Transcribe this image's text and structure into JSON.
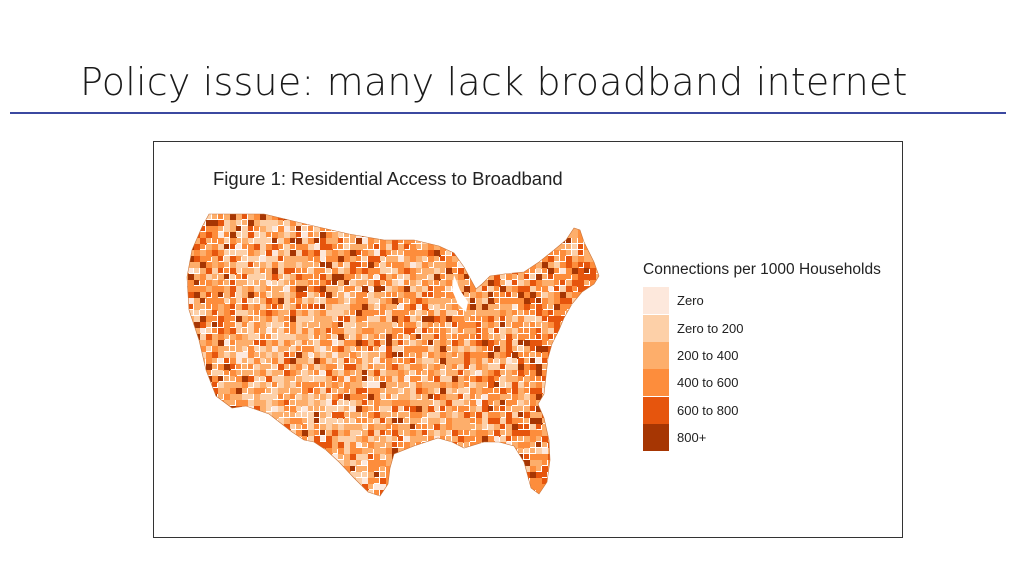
{
  "slide": {
    "title": "Policy issue: many lack broadband internet",
    "rule_color": "#3b48a0"
  },
  "figure": {
    "title": "Figure 1: Residential Access to Broadband",
    "map_subject": "contiguous United States by county",
    "legend": {
      "title": "Connections per 1000 Households",
      "items": [
        {
          "label": "Zero",
          "color": "#fde8dc"
        },
        {
          "label": "Zero to 200",
          "color": "#fdd0a8"
        },
        {
          "label": "200 to 400",
          "color": "#fdae6b"
        },
        {
          "label": "400 to 600",
          "color": "#fd8d3c"
        },
        {
          "label": "600 to 800",
          "color": "#e6550d"
        },
        {
          "label": "800+",
          "color": "#a63603"
        }
      ]
    }
  }
}
